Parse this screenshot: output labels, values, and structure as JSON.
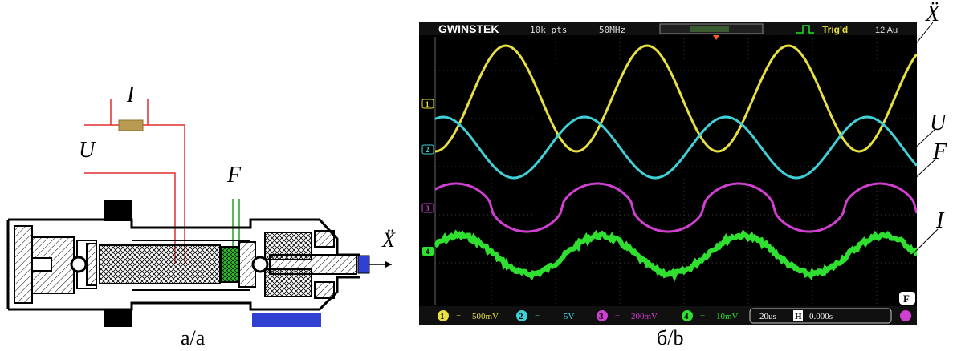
{
  "labels": {
    "current": "I",
    "voltage": "U",
    "force": "F",
    "acceleration": "Ẍ"
  },
  "captions": {
    "left": "а/a",
    "right": "б/b"
  },
  "scope": {
    "brand": "GWINSTEK",
    "points": "10k pts",
    "bandwidth": "50MHz",
    "trig": "Trig'd",
    "date": "12 Au",
    "channels": [
      {
        "num": "1",
        "scale": "500mV",
        "color": "#e8e040"
      },
      {
        "num": "2",
        "scale": "5V",
        "color": "#40d0d8"
      },
      {
        "num": "3",
        "scale": "200mV",
        "color": "#d040d0"
      },
      {
        "num": "4",
        "scale": "10mV",
        "color": "#30e030"
      }
    ],
    "timebase": "20us",
    "h_label": "H",
    "offset": "0.000s",
    "badge": "F"
  },
  "colors": {
    "acceleration_trace": "#e8e040",
    "voltage_trace": "#40d0d8",
    "force_trace": "#d040d0",
    "current_trace": "#30e030",
    "wire_voltage": "#e03030",
    "wire_force": "#20a020",
    "resistor": "#b89a50",
    "base_plate": "#3040d0"
  }
}
